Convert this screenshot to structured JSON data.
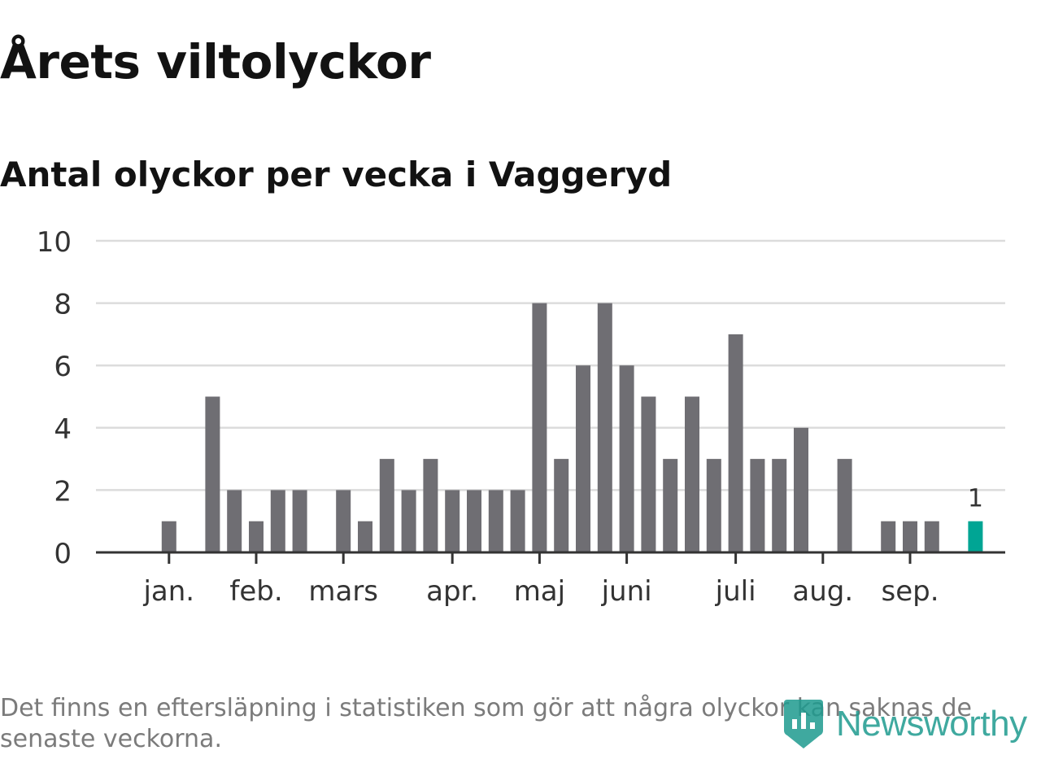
{
  "header": {
    "title": "Årets viltolyckor",
    "subtitle": "Antal olyckor per vecka i Vaggeryd"
  },
  "chart_data": {
    "type": "bar",
    "title": "Årets viltolyckor",
    "subtitle": "Antal olyckor per vecka i Vaggeryd",
    "xlabel": "",
    "ylabel": "",
    "x": [
      1,
      2,
      3,
      4,
      5,
      6,
      7,
      8,
      9,
      10,
      11,
      12,
      13,
      14,
      15,
      16,
      17,
      18,
      19,
      20,
      21,
      22,
      23,
      24,
      25,
      26,
      27,
      28,
      29,
      30,
      31,
      32,
      33,
      34,
      35,
      36,
      37,
      38,
      39,
      40
    ],
    "values": [
      0,
      1,
      0,
      5,
      2,
      1,
      2,
      2,
      0,
      2,
      1,
      3,
      2,
      3,
      2,
      2,
      2,
      2,
      8,
      3,
      6,
      8,
      6,
      5,
      3,
      5,
      3,
      7,
      3,
      3,
      4,
      0,
      3,
      0,
      1,
      1,
      1,
      0,
      1,
      0
    ],
    "highlight_index": 38,
    "highlight_label": "1",
    "ylim": [
      0,
      10
    ],
    "yticks": [
      "0",
      "2",
      "4",
      "6",
      "8",
      "10"
    ],
    "month_ticks": [
      {
        "label": "jan.",
        "week": 2
      },
      {
        "label": "feb.",
        "week": 6
      },
      {
        "label": "mars",
        "week": 10
      },
      {
        "label": "apr.",
        "week": 15
      },
      {
        "label": "maj",
        "week": 19
      },
      {
        "label": "juni",
        "week": 23
      },
      {
        "label": "juli",
        "week": 28
      },
      {
        "label": "aug.",
        "week": 32
      },
      {
        "label": "sep.",
        "week": 36
      }
    ],
    "grid": true,
    "colors": {
      "bar": "#6f6e73",
      "highlight": "#00a594",
      "grid": "#dcdcdc",
      "axis": "#333333"
    }
  },
  "footer": {
    "note": "Det finns en eftersläpning i statistiken som gör att några olyckor kan saknas de senaste veckorna.",
    "logo_text": "Newsworthy",
    "logo_icon": "newsworthy-logo-icon"
  }
}
